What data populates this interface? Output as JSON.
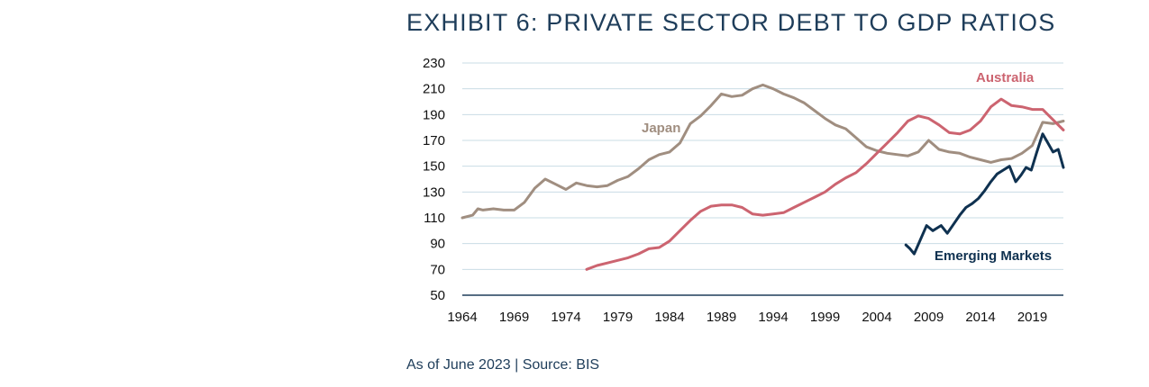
{
  "chart_data": {
    "type": "line",
    "title": "EXHIBIT 6: PRIVATE SECTOR DEBT TO GDP RATIOS",
    "note": "As of June 2023 | Source: BIS",
    "xlabel": "",
    "ylabel": "",
    "xlim": [
      1964,
      2022
    ],
    "ylim": [
      50,
      230
    ],
    "y_ticks": [
      50,
      70,
      90,
      110,
      130,
      150,
      170,
      190,
      210,
      230
    ],
    "x_ticks": [
      "1964",
      "1969",
      "1974",
      "1979",
      "1984",
      "1989",
      "1994",
      "1999",
      "2004",
      "2009",
      "2014",
      "2019"
    ],
    "grid": true,
    "colors": {
      "Japan": "#a08e80",
      "Australia": "#cc6470",
      "Emerging Markets": "#0f3150",
      "axis": "#1e3d5a",
      "grid": "#c9dce5"
    },
    "series": [
      {
        "name": "Japan",
        "x": [
          1964,
          1965,
          1965.5,
          1966,
          1967,
          1968,
          1969,
          1970,
          1971,
          1972,
          1973,
          1974,
          1975,
          1976,
          1977,
          1978,
          1979,
          1980,
          1981,
          1982,
          1983,
          1984,
          1985,
          1986,
          1987,
          1988,
          1989,
          1990,
          1991,
          1992,
          1993,
          1994,
          1995,
          1996,
          1997,
          1998,
          1999,
          2000,
          2001,
          2002,
          2003,
          2004,
          2005,
          2006,
          2007,
          2008,
          2009,
          2010,
          2011,
          2012,
          2013,
          2014,
          2015,
          2016,
          2017,
          2018,
          2019,
          2020,
          2021,
          2022
        ],
        "values": [
          110,
          112,
          117,
          116,
          117,
          116,
          116,
          122,
          133,
          140,
          136,
          132,
          137,
          135,
          134,
          135,
          139,
          142,
          148,
          155,
          159,
          161,
          168,
          183,
          189,
          197,
          206,
          204,
          205,
          210,
          213,
          210,
          206,
          203,
          199,
          193,
          187,
          182,
          179,
          172,
          165,
          162,
          160,
          159,
          158,
          161,
          170,
          163,
          161,
          160,
          157,
          155,
          153,
          155,
          156,
          160,
          166,
          184,
          183,
          185
        ]
      },
      {
        "name": "Australia",
        "x": [
          1976,
          1977,
          1978,
          1979,
          1980,
          1981,
          1982,
          1983,
          1984,
          1985,
          1986,
          1987,
          1988,
          1989,
          1990,
          1991,
          1992,
          1993,
          1994,
          1995,
          1996,
          1997,
          1998,
          1999,
          2000,
          2001,
          2002,
          2003,
          2004,
          2005,
          2006,
          2007,
          2008,
          2009,
          2010,
          2011,
          2012,
          2013,
          2014,
          2015,
          2016,
          2017,
          2018,
          2019,
          2020,
          2021,
          2022
        ],
        "values": [
          70,
          73,
          75,
          77,
          79,
          82,
          86,
          87,
          92,
          100,
          108,
          115,
          119,
          120,
          120,
          118,
          113,
          112,
          113,
          114,
          118,
          122,
          126,
          130,
          136,
          141,
          145,
          152,
          160,
          168,
          176,
          185,
          189,
          187,
          182,
          176,
          175,
          178,
          185,
          196,
          202,
          197,
          196,
          194,
          194,
          186,
          178
        ]
      },
      {
        "name": "Emerging Markets",
        "x": [
          2006.8,
          2007.2,
          2007.6,
          2008.2,
          2008.8,
          2009.4,
          2010.2,
          2010.8,
          2011.4,
          2012.0,
          2012.6,
          2013.2,
          2013.8,
          2014.4,
          2015.0,
          2015.6,
          2016.2,
          2016.8,
          2017.4,
          2017.9,
          2018.4,
          2018.9,
          2019.4,
          2020.0,
          2020.5,
          2021.0,
          2021.5,
          2022.0
        ],
        "values": [
          89,
          86,
          82,
          93,
          104,
          100,
          104,
          98,
          105,
          112,
          118,
          121,
          125,
          131,
          138,
          144,
          147,
          150,
          138,
          143,
          149,
          147,
          160,
          175,
          168,
          161,
          163,
          149
        ]
      }
    ],
    "annotations": [
      "Japan",
      "Australia",
      "Emerging Markets"
    ]
  }
}
